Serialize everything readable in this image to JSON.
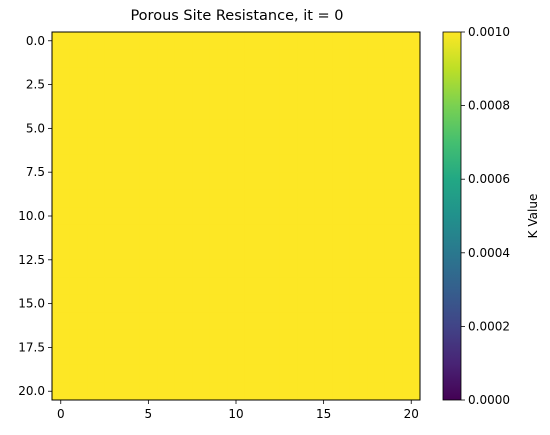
{
  "chart_data": {
    "type": "heatmap",
    "title": "Porous Site Resistance, it = 0",
    "grid_size": [
      21,
      21
    ],
    "uniform_value": 0.001,
    "x_ticks": [
      "0",
      "5",
      "10",
      "15",
      "20"
    ],
    "x_tick_values": [
      0,
      5,
      10,
      15,
      20
    ],
    "y_ticks": [
      "0.0",
      "2.5",
      "5.0",
      "7.5",
      "10.0",
      "12.5",
      "15.0",
      "17.5",
      "20.0"
    ],
    "y_tick_values": [
      0,
      2.5,
      5,
      7.5,
      10,
      12.5,
      15,
      17.5,
      20
    ],
    "xlim": [
      -0.5,
      20.5
    ],
    "ylim": [
      20.5,
      -0.5
    ],
    "colorbar": {
      "label": "K Value",
      "colormap": "viridis",
      "range": [
        0,
        0.001
      ],
      "ticks": [
        "0.0000",
        "0.0002",
        "0.0004",
        "0.0006",
        "0.0008",
        "0.0010"
      ],
      "tick_values": [
        0,
        0.0002,
        0.0004,
        0.0006,
        0.0008,
        0.001
      ]
    },
    "cell_color": "#fde725"
  }
}
